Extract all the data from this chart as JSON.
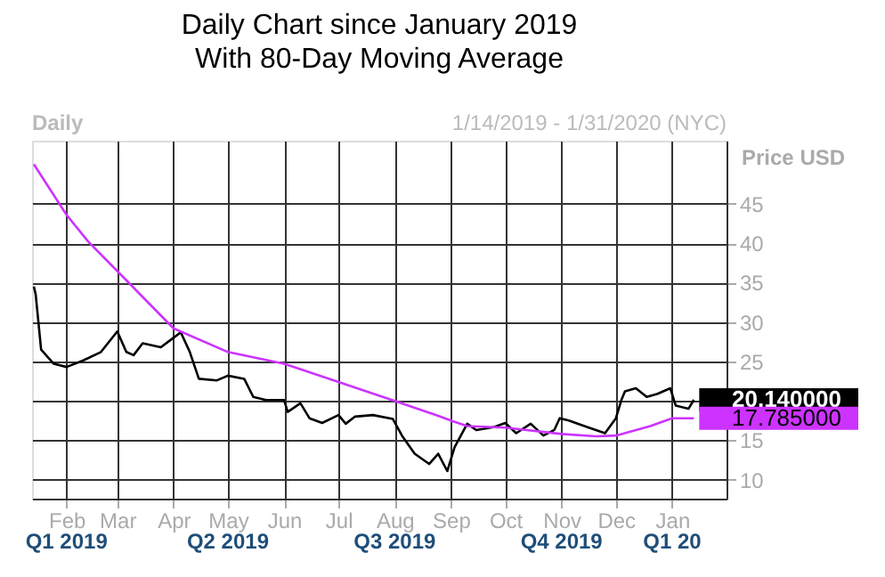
{
  "chart_data": {
    "type": "line",
    "title": "Daily Chart since January 2019",
    "subtitle": "With 80-Day Moving Average",
    "ylabel": "Price USD",
    "annotations": [
      "Daily",
      "1/14/2019 - 1/31/2020 (NYC)",
      "Q1 2019",
      "Q2 2019",
      "Q3 2019",
      "Q4 2019",
      "Q1 20",
      {
        "text": "20.140000",
        "x": "2020-01-13",
        "y": 20.14
      },
      {
        "text": "17.785000",
        "x": "2020-01-13",
        "y": 17.785
      }
    ],
    "series": [
      {
        "color": "#000000",
        "x": [
          "2019-01-14",
          "2019-01-15",
          "2019-01-18",
          "2019-01-25",
          "2019-02-01",
          "2019-02-10",
          "2019-02-20",
          "2019-03-01",
          "2019-03-06",
          "2019-03-10",
          "2019-03-15",
          "2019-03-25",
          "2019-04-01",
          "2019-04-05",
          "2019-04-10",
          "2019-04-15",
          "2019-04-25",
          "2019-05-01",
          "2019-05-10",
          "2019-05-15",
          "2019-05-22",
          "2019-06-01",
          "2019-06-03",
          "2019-06-10",
          "2019-06-15",
          "2019-06-22",
          "2019-07-01",
          "2019-07-05",
          "2019-07-10",
          "2019-07-20",
          "2019-07-31",
          "2019-08-05",
          "2019-08-12",
          "2019-08-20",
          "2019-08-25",
          "2019-08-30",
          "2019-09-03",
          "2019-09-10",
          "2019-09-15",
          "2019-09-25",
          "2019-10-01",
          "2019-10-07",
          "2019-10-15",
          "2019-10-22",
          "2019-10-28",
          "2019-10-31",
          "2019-11-05",
          "2019-11-15",
          "2019-11-25",
          "2019-12-01",
          "2019-12-04",
          "2019-12-06",
          "2019-12-12",
          "2019-12-18",
          "2019-12-24",
          "2019-12-31",
          "2020-01-03",
          "2020-01-10",
          "2020-01-13"
        ],
        "values": [
          34.5,
          33.5,
          26.5,
          24.7,
          24.3,
          25.1,
          26.2,
          28.8,
          26.2,
          25.8,
          27.3,
          26.8,
          28,
          28.7,
          26.2,
          22.8,
          22.6,
          23.2,
          22.8,
          20.5,
          20.1,
          20.1,
          18.6,
          19.7,
          17.8,
          17.2,
          18.2,
          17.1,
          18,
          18.2,
          17.7,
          15.6,
          13.3,
          12,
          13.3,
          11.1,
          14.1,
          17.1,
          16.3,
          16.7,
          17.2,
          15.9,
          17.1,
          15.6,
          16.3,
          17.8,
          17.5,
          16.7,
          15.9,
          17.8,
          20.1,
          21.2,
          21.6,
          20.5,
          20.9,
          21.6,
          19.4,
          19,
          20.14
        ]
      },
      {
        "color": "#cc33ff",
        "x": [
          "2019-01-14",
          "2019-02-01",
          "2019-02-13",
          "2019-03-06",
          "2019-04-01",
          "2019-05-01",
          "2019-06-01",
          "2019-07-01",
          "2019-08-01",
          "2019-08-25",
          "2019-09-01",
          "2019-09-10",
          "2019-10-01",
          "2019-11-01",
          "2019-11-20",
          "2019-12-01",
          "2019-12-20",
          "2020-01-01",
          "2020-01-13"
        ],
        "values": [
          50,
          43.6,
          40.2,
          35.3,
          29.2,
          26.2,
          24.7,
          22.4,
          20,
          18.1,
          17.5,
          16.8,
          16.6,
          15.8,
          15.5,
          15.6,
          16.8,
          17.8,
          17.785
        ]
      }
    ],
    "xlim": [
      "2019-01-13",
      "2020-01-31"
    ],
    "xticks": [
      {
        "value": "2019-02-01",
        "label": "Feb"
      },
      {
        "value": "2019-03-01",
        "label": "Mar"
      },
      {
        "value": "2019-04-01",
        "label": "Apr"
      },
      {
        "value": "2019-05-01",
        "label": "May"
      },
      {
        "value": "2019-06-01",
        "label": "Jun"
      },
      {
        "value": "2019-07-01",
        "label": "Jul"
      },
      {
        "value": "2019-08-01",
        "label": "Aug"
      },
      {
        "value": "2019-09-01",
        "label": "Sep"
      },
      {
        "value": "2019-10-01",
        "label": "Oct"
      },
      {
        "value": "2019-11-01",
        "label": "Nov"
      },
      {
        "value": "2019-12-01",
        "label": "Dec"
      },
      {
        "value": "2020-01-01",
        "label": "Jan"
      }
    ],
    "ylim": [
      7.6,
      53
    ],
    "yticks": [
      10,
      15,
      {
        "value": 20,
        "label": null
      },
      25,
      30,
      35,
      40,
      45
    ],
    "grid": true,
    "marker": "none",
    "line_style": "solid"
  }
}
